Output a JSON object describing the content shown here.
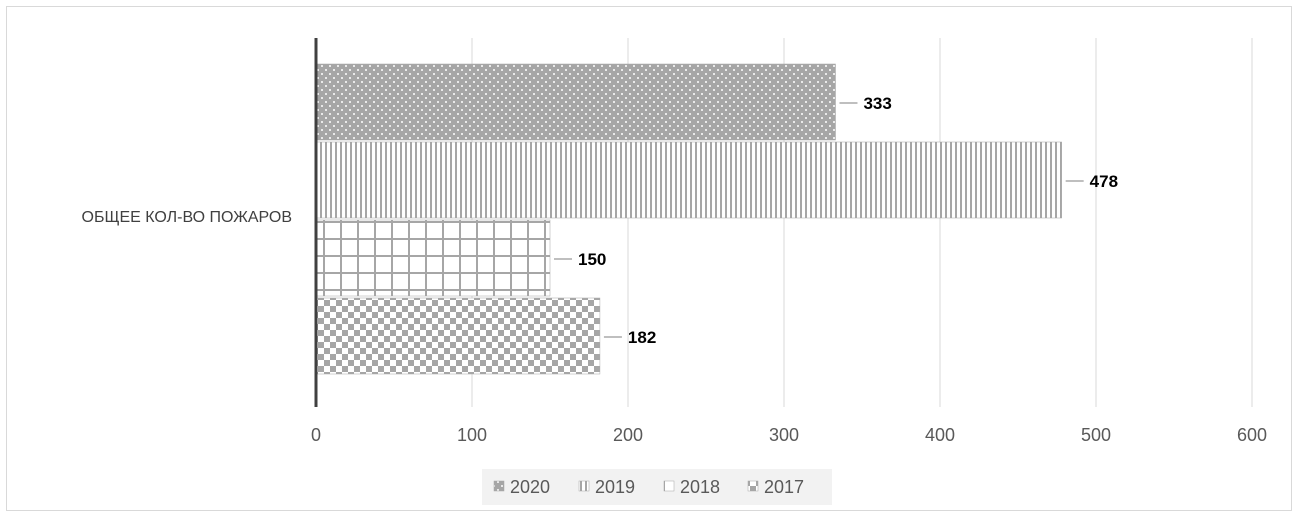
{
  "chart_data": {
    "type": "bar",
    "orientation": "horizontal",
    "categories": [
      "ОБЩЕЕ КОЛ-ВО ПОЖАРОВ"
    ],
    "series": [
      {
        "name": "2020",
        "values": [
          333
        ],
        "pattern": "dots"
      },
      {
        "name": "2019",
        "values": [
          478
        ],
        "pattern": "vertical-lines"
      },
      {
        "name": "2018",
        "values": [
          150
        ],
        "pattern": "grid"
      },
      {
        "name": "2017",
        "values": [
          182
        ],
        "pattern": "checkerboard"
      }
    ],
    "x_ticks": [
      "0",
      "100",
      "200",
      "300",
      "400",
      "500",
      "600"
    ],
    "xlim": [
      0,
      600
    ],
    "grid": true,
    "legend_position": "bottom",
    "data_labels": [
      "333",
      "478",
      "150",
      "182"
    ],
    "colors": {
      "pattern": "#a6a6a6",
      "grid": "#d9d9d9",
      "axis": "#404040"
    }
  }
}
